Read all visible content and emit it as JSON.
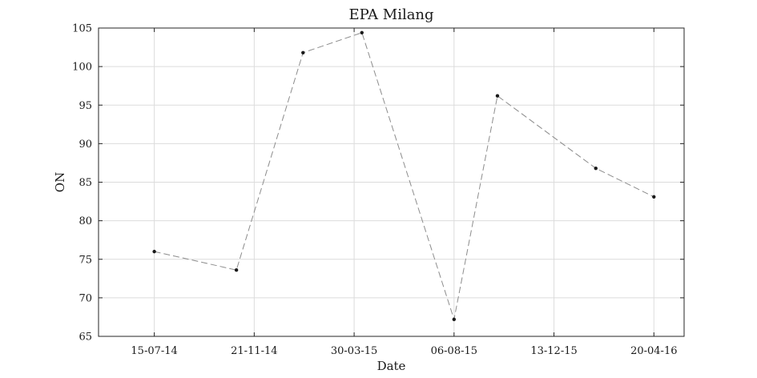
{
  "chart_data": {
    "type": "line",
    "title": "EPA Milang",
    "xlabel": "Date",
    "ylabel": "ON",
    "x_tick_labels": [
      "15-07-14",
      "21-11-14",
      "30-03-15",
      "06-08-15",
      "13-12-15",
      "20-04-16"
    ],
    "x_tick_dates": [
      "2014-07-15",
      "2014-11-21",
      "2015-03-30",
      "2015-08-06",
      "2015-12-13",
      "2016-04-20"
    ],
    "xlim": [
      "2014-05-04",
      "2016-05-29"
    ],
    "ylim": [
      65,
      105
    ],
    "y_ticks": [
      65,
      70,
      75,
      80,
      85,
      90,
      95,
      100,
      105
    ],
    "grid": true,
    "line_style": "dashed",
    "line_color": "#8c8c8c",
    "marker_color": "#1a1a1a",
    "grid_color": "#dcdcdc",
    "series": [
      {
        "x": [
          "2014-07-15",
          "2014-10-29",
          "2015-01-23",
          "2015-04-09",
          "2015-08-06",
          "2015-10-01",
          "2016-02-05",
          "2016-04-20"
        ],
        "y": [
          76.0,
          73.6,
          101.8,
          104.4,
          67.2,
          96.2,
          86.8,
          83.1
        ]
      }
    ]
  }
}
